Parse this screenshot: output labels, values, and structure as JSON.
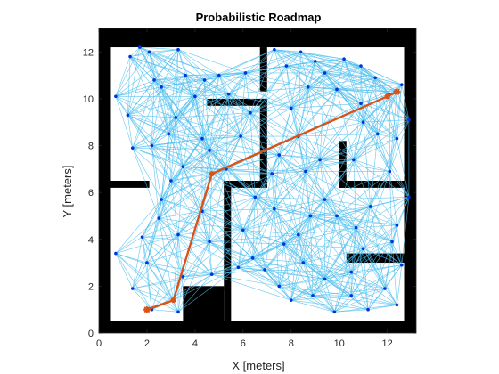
{
  "chart_data": {
    "type": "scatter",
    "title": "Probabilistic Roadmap",
    "xlabel": "X [meters]",
    "ylabel": "Y [meters]",
    "xlim": [
      0,
      13.2
    ],
    "ylim": [
      0,
      13
    ],
    "xticks": [
      "0",
      "2",
      "4",
      "6",
      "8",
      "10",
      "12"
    ],
    "yticks": [
      "0",
      "2",
      "4",
      "6",
      "8",
      "10",
      "12"
    ],
    "xtick_values": [
      0,
      2,
      4,
      6,
      8,
      10,
      12
    ],
    "ytick_values": [
      0,
      2,
      4,
      6,
      8,
      10,
      12
    ],
    "grid": false,
    "colors": {
      "edges": "#4dbeee",
      "nodes": "#0033dd",
      "path": "#d95319",
      "walls": "#000000",
      "axes": "#262626"
    },
    "walls": [
      {
        "x1": 0,
        "y1": 12.2,
        "x2": 13.2,
        "y2": 13
      },
      {
        "x1": 0,
        "y1": 0,
        "x2": 13.2,
        "y2": 0.5
      },
      {
        "x1": 0,
        "y1": 0,
        "x2": 0.5,
        "y2": 13
      },
      {
        "x1": 12.7,
        "y1": 0,
        "x2": 13.2,
        "y2": 13
      },
      {
        "x1": 0.5,
        "y1": 6.2,
        "x2": 2.1,
        "y2": 6.5
      },
      {
        "x1": 5.2,
        "y1": 6.2,
        "x2": 7.0,
        "y2": 6.5
      },
      {
        "x1": 6.7,
        "y1": 6.2,
        "x2": 7.0,
        "y2": 10.0
      },
      {
        "x1": 4.5,
        "y1": 9.7,
        "x2": 7.0,
        "y2": 10.0
      },
      {
        "x1": 6.7,
        "y1": 12.2,
        "x2": 7.0,
        "y2": 10.3
      },
      {
        "x1": 5.2,
        "y1": 0.5,
        "x2": 5.5,
        "y2": 6.5
      },
      {
        "x1": 3.5,
        "y1": 0.5,
        "x2": 5.2,
        "y2": 2.0
      },
      {
        "x1": 3.5,
        "y1": 1.8,
        "x2": 5.2,
        "y2": 2.0
      },
      {
        "x1": 10.0,
        "y1": 6.2,
        "x2": 12.7,
        "y2": 6.5
      },
      {
        "x1": 10.0,
        "y1": 6.2,
        "x2": 10.3,
        "y2": 8.2
      },
      {
        "x1": 10.3,
        "y1": 3.0,
        "x2": 12.7,
        "y2": 3.4
      }
    ],
    "nodes": [
      [
        2.1,
        12.0
      ],
      [
        1.7,
        12.2
      ],
      [
        1.3,
        11.8
      ],
      [
        0.7,
        10.1
      ],
      [
        1.2,
        9.3
      ],
      [
        1.4,
        7.9
      ],
      [
        2.3,
        10.8
      ],
      [
        2.6,
        10.5
      ],
      [
        2.2,
        8.0
      ],
      [
        2.9,
        8.5
      ],
      [
        3.2,
        9.2
      ],
      [
        3.6,
        11.0
      ],
      [
        3.3,
        12.1
      ],
      [
        4.0,
        10.1
      ],
      [
        4.4,
        10.8
      ],
      [
        5.0,
        11.0
      ],
      [
        5.4,
        10.2
      ],
      [
        6.1,
        11.1
      ],
      [
        4.3,
        8.3
      ],
      [
        3.5,
        7.1
      ],
      [
        4.6,
        7.8
      ],
      [
        5.3,
        7.0
      ],
      [
        5.9,
        8.4
      ],
      [
        6.3,
        9.4
      ],
      [
        7.3,
        12.1
      ],
      [
        7.8,
        11.4
      ],
      [
        8.4,
        12.0
      ],
      [
        9.0,
        11.6
      ],
      [
        9.4,
        11.1
      ],
      [
        10.2,
        11.7
      ],
      [
        10.9,
        11.4
      ],
      [
        11.5,
        10.9
      ],
      [
        12.1,
        10.2
      ],
      [
        12.6,
        10.6
      ],
      [
        12.9,
        9.1
      ],
      [
        12.4,
        8.3
      ],
      [
        11.6,
        8.5
      ],
      [
        11.0,
        9.0
      ],
      [
        12.1,
        6.9
      ],
      [
        10.6,
        7.4
      ],
      [
        9.2,
        7.4
      ],
      [
        8.0,
        9.6
      ],
      [
        8.3,
        8.4
      ],
      [
        7.5,
        7.6
      ],
      [
        7.2,
        6.8
      ],
      [
        8.6,
        6.9
      ],
      [
        9.4,
        5.7
      ],
      [
        8.8,
        5.0
      ],
      [
        7.3,
        5.3
      ],
      [
        6.5,
        5.8
      ],
      [
        6.0,
        4.4
      ],
      [
        6.4,
        3.2
      ],
      [
        6.9,
        2.7
      ],
      [
        7.7,
        3.8
      ],
      [
        8.3,
        4.2
      ],
      [
        8.5,
        3.0
      ],
      [
        7.5,
        2.0
      ],
      [
        8.0,
        1.4
      ],
      [
        8.9,
        1.6
      ],
      [
        9.4,
        2.3
      ],
      [
        9.8,
        0.9
      ],
      [
        10.5,
        1.6
      ],
      [
        11.2,
        1.0
      ],
      [
        11.9,
        1.9
      ],
      [
        12.4,
        1.2
      ],
      [
        12.6,
        2.9
      ],
      [
        12.2,
        3.9
      ],
      [
        11.0,
        3.6
      ],
      [
        10.5,
        2.6
      ],
      [
        12.4,
        4.6
      ],
      [
        12.9,
        5.8
      ],
      [
        11.3,
        5.4
      ],
      [
        10.7,
        4.5
      ],
      [
        9.9,
        5.0
      ],
      [
        2.0,
        3.0
      ],
      [
        1.4,
        1.9
      ],
      [
        0.7,
        3.4
      ],
      [
        1.8,
        4.1
      ],
      [
        2.5,
        4.9
      ],
      [
        2.6,
        5.7
      ],
      [
        3.0,
        6.5
      ],
      [
        3.3,
        4.2
      ],
      [
        3.5,
        2.4
      ],
      [
        3.1,
        1.4
      ],
      [
        3.3,
        0.9
      ],
      [
        4.3,
        5.2
      ],
      [
        4.6,
        3.9
      ],
      [
        4.7,
        2.5
      ],
      [
        5.8,
        2.8
      ],
      [
        2.2,
        1.0
      ],
      [
        12.4,
        10.3
      ],
      [
        4.7,
        6.8
      ],
      [
        9.9,
        10.4
      ],
      [
        10.9,
        9.8
      ],
      [
        8.7,
        10.5
      ]
    ],
    "path": [
      {
        "x": 2.0,
        "y": 1.0
      },
      {
        "x": 3.1,
        "y": 1.4
      },
      {
        "x": 4.7,
        "y": 6.8
      },
      {
        "x": 12.0,
        "y": 10.1
      },
      {
        "x": 12.4,
        "y": 10.3
      }
    ],
    "path_start": {
      "x": 2.0,
      "y": 1.0
    },
    "path_end": {
      "x": 12.4,
      "y": 10.3
    }
  }
}
